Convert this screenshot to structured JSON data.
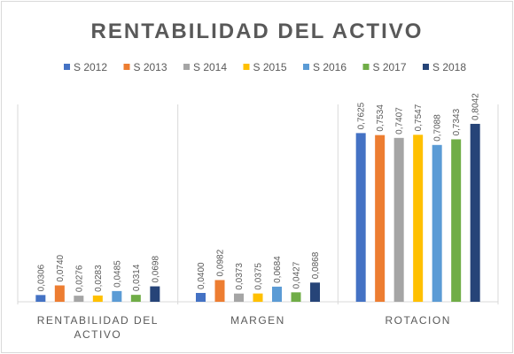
{
  "chart_data": {
    "type": "bar",
    "title": "RENTABILIDAD DEL ACTIVO",
    "categories": [
      [
        "RENTABILIDAD DEL",
        "ACTIVO"
      ],
      [
        "MARGEN"
      ],
      [
        "ROTACION"
      ]
    ],
    "series": [
      {
        "name": "S 2012",
        "color": "#4472C4",
        "values": [
          0.0306,
          0.04,
          0.7625
        ],
        "labels": [
          "0,0306",
          "0,0400",
          "0,7625"
        ]
      },
      {
        "name": "S 2013",
        "color": "#ED7D31",
        "values": [
          0.074,
          0.0982,
          0.7534
        ],
        "labels": [
          "0,0740",
          "0,0982",
          "0,7534"
        ]
      },
      {
        "name": "S 2014",
        "color": "#A5A5A5",
        "values": [
          0.0276,
          0.0373,
          0.7407
        ],
        "labels": [
          "0,0276",
          "0,0373",
          "0,7407"
        ]
      },
      {
        "name": "S 2015",
        "color": "#FFC000",
        "values": [
          0.0283,
          0.0375,
          0.7547
        ],
        "labels": [
          "0,0283",
          "0,0375",
          "0,7547"
        ]
      },
      {
        "name": "S 2016",
        "color": "#5B9BD5",
        "values": [
          0.0485,
          0.0684,
          0.7088
        ],
        "labels": [
          "0,0485",
          "0,0684",
          "0,7088"
        ]
      },
      {
        "name": "S 2017",
        "color": "#70AD47",
        "values": [
          0.0314,
          0.0427,
          0.7343
        ],
        "labels": [
          "0,0314",
          "0,0427",
          "0,7343"
        ]
      },
      {
        "name": "S 2018",
        "color": "#264478",
        "values": [
          0.0698,
          0.0868,
          0.8042
        ],
        "labels": [
          "0,0698",
          "0,0868",
          "0,8042"
        ]
      }
    ],
    "ylim": [
      0,
      1
    ],
    "grid": false,
    "legend_position": "top",
    "category_separators": true
  }
}
